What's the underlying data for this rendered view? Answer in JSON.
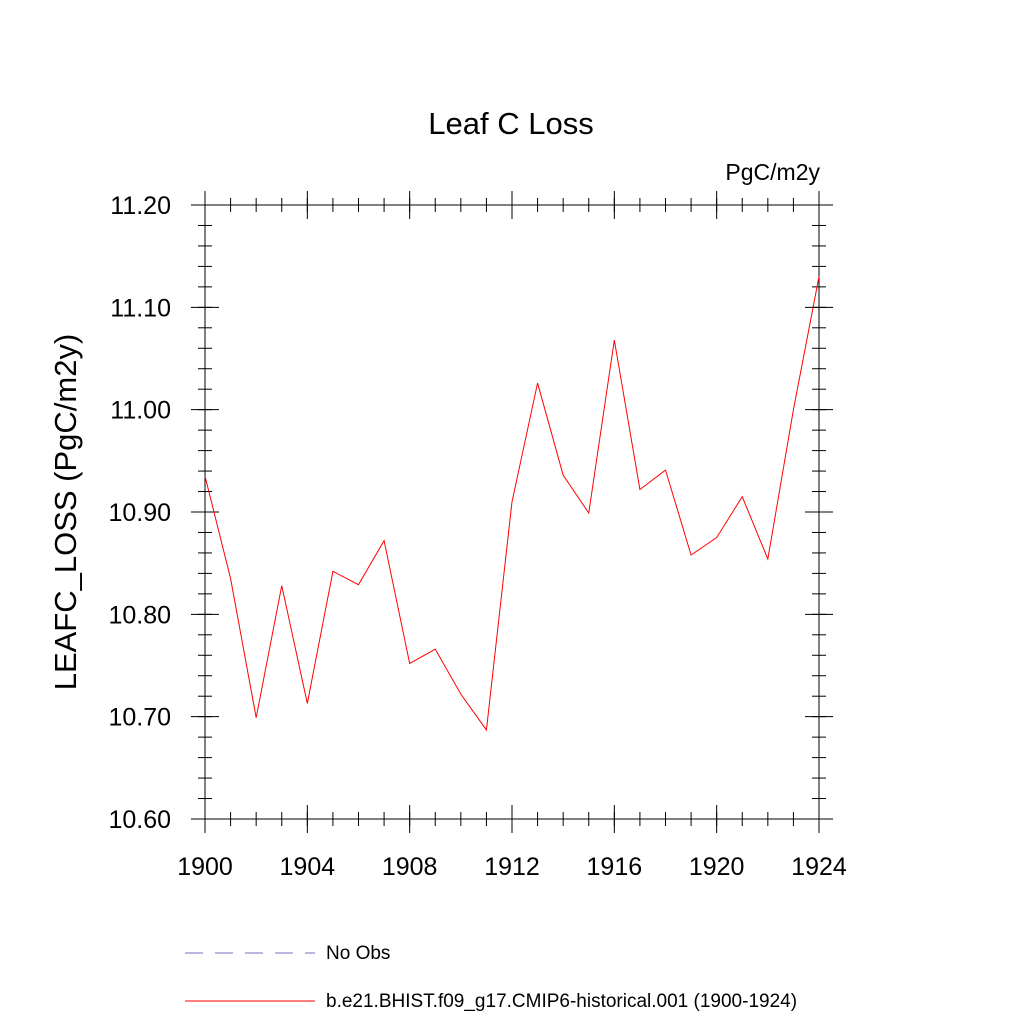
{
  "chart_data": {
    "type": "line",
    "title": "Leaf C Loss",
    "units_label": "PgC/m2y",
    "ylabel": "LEAFC_LOSS  (PgC/m2y)",
    "xlabel": "",
    "xlim": [
      1900,
      1924
    ],
    "ylim": [
      10.6,
      11.2
    ],
    "x_ticks": [
      "1900",
      "1904",
      "1908",
      "1912",
      "1916",
      "1920",
      "1924"
    ],
    "y_ticks": [
      "10.60",
      "10.70",
      "10.80",
      "10.90",
      "11.00",
      "11.10",
      "11.20"
    ],
    "grid": false,
    "legend_position": "bottom",
    "series": [
      {
        "name": "b.e21.BHIST.f09_g17.CMIP6-historical.001 (1900-1924)",
        "color": "#ff0000",
        "style": "solid",
        "x": [
          1900,
          1901,
          1902,
          1903,
          1904,
          1905,
          1906,
          1907,
          1908,
          1909,
          1910,
          1911,
          1912,
          1913,
          1914,
          1915,
          1916,
          1917,
          1918,
          1919,
          1920,
          1921,
          1922,
          1923,
          1924
        ],
        "values": [
          10.935,
          10.835,
          10.699,
          10.828,
          10.713,
          10.842,
          10.829,
          10.872,
          10.752,
          10.766,
          10.722,
          10.687,
          10.91,
          11.026,
          10.936,
          10.899,
          11.068,
          10.922,
          10.941,
          10.858,
          10.875,
          10.915,
          10.854,
          11.0,
          11.13
        ]
      }
    ],
    "legend": [
      {
        "label": "No Obs",
        "color": "#7b68c8",
        "style": "dashed"
      },
      {
        "label": "b.e21.BHIST.f09_g17.CMIP6-historical.001 (1900-1924)",
        "color": "#ff0000",
        "style": "solid"
      }
    ]
  }
}
